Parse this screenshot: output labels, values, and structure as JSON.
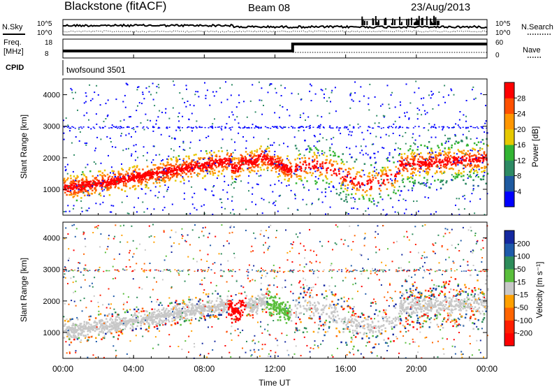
{
  "header": {
    "station": "Blackstone (fitACF)",
    "beam": "Beam 08",
    "date": "23/Aug/2013"
  },
  "top_panels": {
    "nsky_label": "N.Sky",
    "nsearch_label": "N.Search",
    "noise_ticks": [
      "10^5",
      "10^0"
    ],
    "freq_label_1": "Freq.",
    "freq_label_2": "[MHz]",
    "freq_ticks": [
      "18",
      "8"
    ],
    "nave_label": "Nave",
    "nave_ticks": [
      "60",
      "0"
    ],
    "cpid_label": "CPID",
    "cpid_text": "twofsound 3501"
  },
  "chart_data": [
    {
      "type": "heatmap",
      "name": "power",
      "ylabel": "Slant Range [km]",
      "yticks": [
        1000,
        2000,
        3000,
        4000
      ],
      "colorbar_label": "Power [dB]",
      "colorbar_ticks": [
        "28",
        "24",
        "20",
        "16",
        "12",
        "8",
        "4"
      ],
      "colors": [
        "#0000ff",
        "#1e5aa0",
        "#2d8a64",
        "#32b432",
        "#e6c800",
        "#ff9600",
        "#ff5000",
        "#ff0000"
      ]
    },
    {
      "type": "heatmap",
      "name": "velocity",
      "ylabel": "Slant Range [km]",
      "yticks": [
        1000,
        2000,
        3000,
        4000
      ],
      "colorbar_label": "Velocity [m s⁻¹]",
      "colorbar_ticks": [
        "200",
        "100",
        "50",
        "15",
        "-15",
        "-50",
        "-100",
        "-200"
      ],
      "colors": [
        "#1428a0",
        "#1e5aaa",
        "#2d8c5a",
        "#5abe3c",
        "#c8c8c8",
        "#ffa000",
        "#ff6400",
        "#ff1e00",
        "#ff0000"
      ],
      "xlabel": "Time UT",
      "xticks": [
        "00:00",
        "04:00",
        "08:00",
        "12:00",
        "16:00",
        "20:00",
        "00:00"
      ]
    }
  ]
}
